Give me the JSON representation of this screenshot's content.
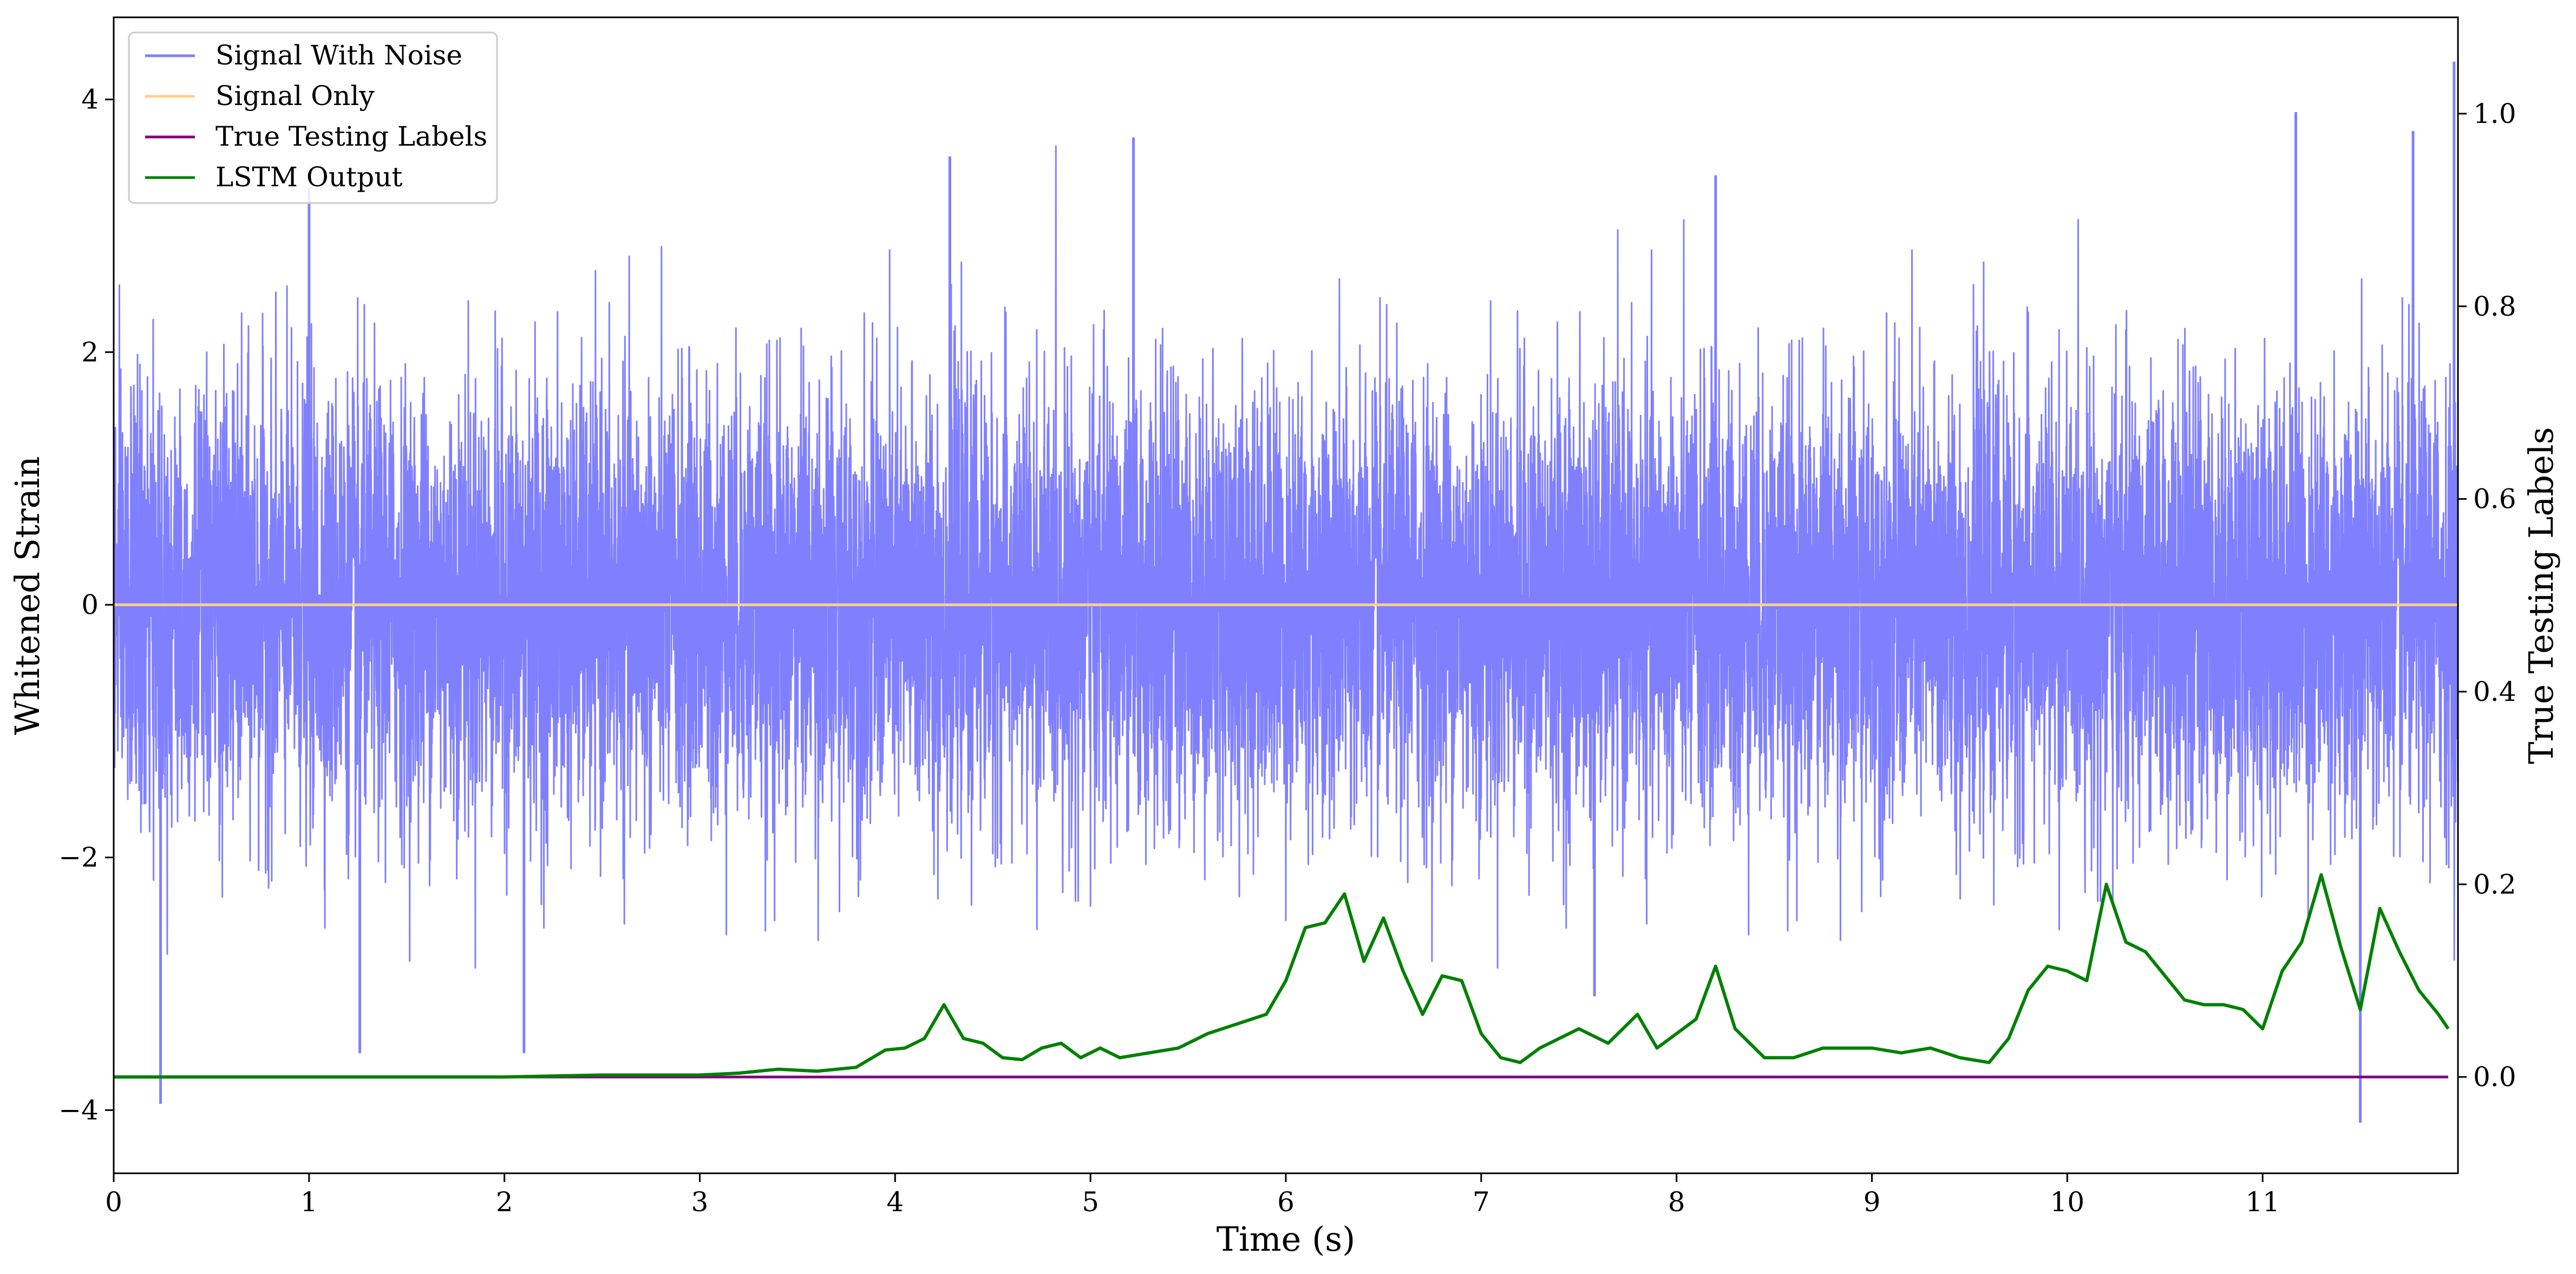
{
  "chart_data": {
    "type": "line",
    "xlabel": "Time (s)",
    "ylabel": "Whitened Strain",
    "y2label": "True Testing Labels",
    "xlim": [
      0,
      12.0
    ],
    "ylim": [
      -4.5,
      4.65
    ],
    "y2lim": [
      -0.1,
      1.1
    ],
    "xticks": [
      0,
      1,
      2,
      3,
      4,
      5,
      6,
      7,
      8,
      9,
      10,
      11
    ],
    "yticks": [
      -4,
      -2,
      0,
      2,
      4
    ],
    "yticklabels": [
      "−4",
      "−2",
      "0",
      "2",
      "4"
    ],
    "y2ticks": [
      0.0,
      0.2,
      0.4,
      0.6,
      0.8,
      1.0
    ],
    "y2ticklabels": [
      "0.0",
      "0.2",
      "0.4",
      "0.6",
      "0.8",
      "1.0"
    ],
    "legend_position": "top-left",
    "grid": false,
    "series": [
      {
        "name": "Signal With Noise",
        "axis": "left",
        "color": "#8080ff",
        "envelope_upper": [
          2.6,
          2.4,
          2.9,
          3.1,
          3.3,
          2.8,
          2.7,
          2.9,
          2.6,
          2.8,
          2.9,
          2.7,
          3.1,
          3.55,
          2.9,
          3.0,
          3.7,
          2.8,
          2.9,
          3.0,
          2.8,
          2.8,
          3.0,
          2.7,
          3.0,
          2.9,
          3.0,
          3.2,
          3.4,
          2.9,
          3.0,
          3.2,
          2.9,
          3.1,
          3.0,
          2.7,
          3.0,
          3.3,
          3.9,
          3.6,
          3.7
        ],
        "envelope_lower": [
          -2.4,
          -3.95,
          -2.8,
          -2.9,
          -2.7,
          -3.5,
          -2.9,
          -3.0,
          -3.5,
          -2.8,
          -2.9,
          -2.8,
          -3.0,
          -2.9,
          -3.0,
          -2.8,
          -2.9,
          -3.0,
          -3.1,
          -2.8,
          -3.0,
          -3.1,
          -2.9,
          -2.8,
          -3.0,
          -2.9,
          -3.0,
          -3.0,
          -2.9,
          -3.3,
          -2.9,
          -3.1,
          -2.8,
          -3.0,
          -2.8,
          -2.9,
          -3.0,
          -2.9,
          -4.1,
          -3.0,
          -2.8
        ],
        "spikes": [
          {
            "t": 0.24,
            "v": -3.95
          },
          {
            "t": 1.0,
            "v": 3.3
          },
          {
            "t": 1.26,
            "v": -3.55
          },
          {
            "t": 2.1,
            "v": -3.55
          },
          {
            "t": 4.28,
            "v": 3.55
          },
          {
            "t": 5.22,
            "v": 3.7
          },
          {
            "t": 7.58,
            "v": -3.1
          },
          {
            "t": 8.2,
            "v": 3.4
          },
          {
            "t": 11.17,
            "v": 3.9
          },
          {
            "t": 11.5,
            "v": -4.1
          },
          {
            "t": 11.77,
            "v": 3.75
          },
          {
            "t": 11.98,
            "v": 4.3
          }
        ]
      },
      {
        "name": "Signal Only",
        "axis": "left",
        "color": "#ffd088",
        "x": [
          0,
          12.0
        ],
        "values": [
          0,
          0
        ]
      },
      {
        "name": "True Testing Labels",
        "axis": "right",
        "color": "#800080",
        "x": [
          0,
          11.95
        ],
        "values": [
          0.0,
          0.0
        ]
      },
      {
        "name": "LSTM Output",
        "axis": "right",
        "color": "#008000",
        "x": [
          0.0,
          0.5,
          1.0,
          1.5,
          2.0,
          2.5,
          3.0,
          3.2,
          3.4,
          3.6,
          3.8,
          3.95,
          4.05,
          4.15,
          4.25,
          4.35,
          4.45,
          4.55,
          4.65,
          4.75,
          4.85,
          4.95,
          5.05,
          5.15,
          5.3,
          5.45,
          5.6,
          5.75,
          5.9,
          6.0,
          6.1,
          6.2,
          6.3,
          6.4,
          6.5,
          6.6,
          6.7,
          6.8,
          6.9,
          7.0,
          7.1,
          7.2,
          7.3,
          7.5,
          7.65,
          7.8,
          7.9,
          8.0,
          8.1,
          8.2,
          8.3,
          8.45,
          8.6,
          8.75,
          8.85,
          9.0,
          9.15,
          9.3,
          9.45,
          9.6,
          9.7,
          9.8,
          9.9,
          10.0,
          10.1,
          10.2,
          10.3,
          10.4,
          10.5,
          10.6,
          10.7,
          10.8,
          10.9,
          11.0,
          11.1,
          11.2,
          11.3,
          11.4,
          11.5,
          11.6,
          11.7,
          11.8,
          11.9,
          11.95
        ],
        "values": [
          0.0,
          0.0,
          0.0,
          0.0,
          0.0,
          0.002,
          0.002,
          0.004,
          0.008,
          0.006,
          0.01,
          0.028,
          0.03,
          0.04,
          0.075,
          0.04,
          0.035,
          0.02,
          0.018,
          0.03,
          0.035,
          0.02,
          0.03,
          0.02,
          0.025,
          0.03,
          0.045,
          0.055,
          0.065,
          0.1,
          0.155,
          0.16,
          0.19,
          0.12,
          0.165,
          0.11,
          0.065,
          0.105,
          0.1,
          0.045,
          0.02,
          0.015,
          0.03,
          0.05,
          0.035,
          0.065,
          0.03,
          0.045,
          0.06,
          0.115,
          0.05,
          0.02,
          0.02,
          0.03,
          0.03,
          0.03,
          0.025,
          0.03,
          0.02,
          0.015,
          0.04,
          0.09,
          0.115,
          0.11,
          0.1,
          0.2,
          0.14,
          0.13,
          0.105,
          0.08,
          0.075,
          0.075,
          0.07,
          0.05,
          0.11,
          0.14,
          0.21,
          0.135,
          0.07,
          0.175,
          0.13,
          0.09,
          0.065,
          0.05
        ]
      }
    ]
  }
}
